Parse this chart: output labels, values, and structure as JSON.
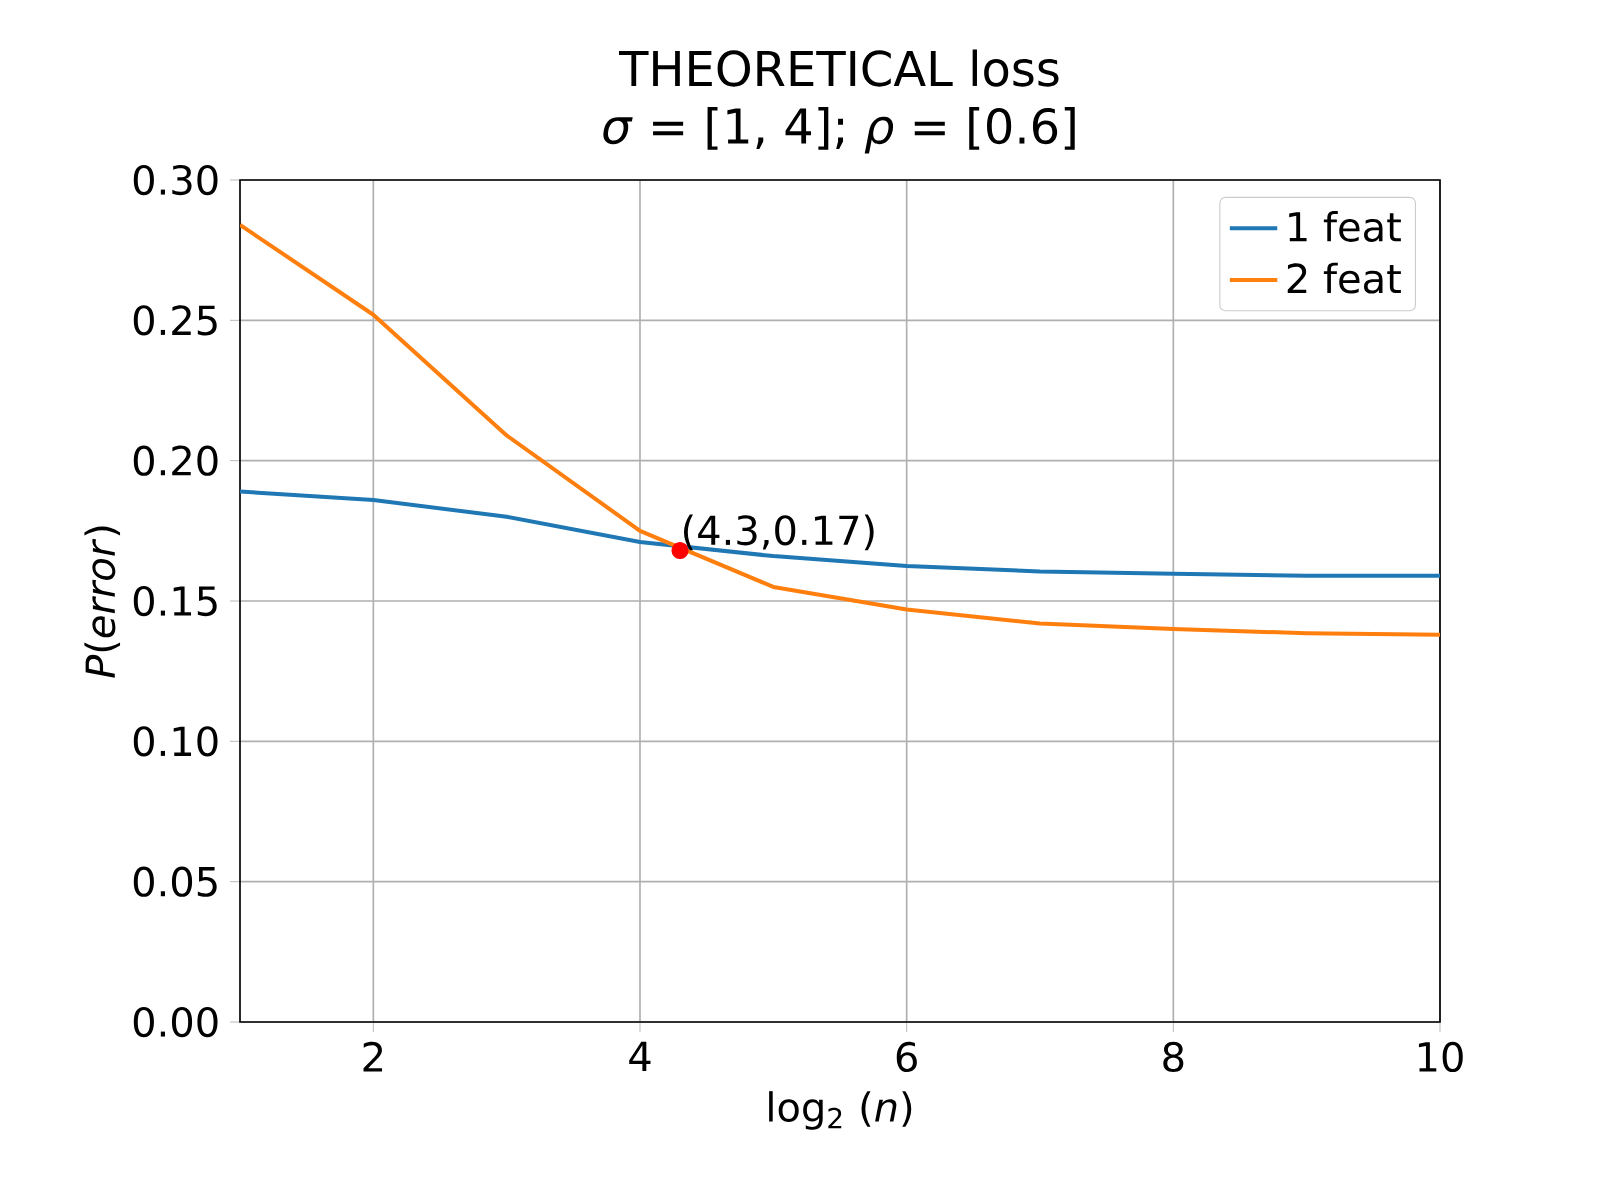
{
  "chart_data": {
    "type": "line",
    "title": "THEORETICAL loss",
    "subtitle": "*σ* = [1, 4];  *ρ* = [0.6]",
    "xlabel": "log$_{2}$ (*n*)",
    "ylabel": "*P*(*error*)",
    "x": [
      1,
      2,
      3,
      4,
      5,
      6,
      7,
      8,
      9,
      10
    ],
    "series": [
      {
        "name": "1 feat",
        "color": "#1f77b4",
        "values": [
          0.189,
          0.186,
          0.18,
          0.171,
          0.166,
          0.1625,
          0.1605,
          0.1597,
          0.159,
          0.159
        ]
      },
      {
        "name": "2 feat",
        "color": "#ff7f0e",
        "values": [
          0.284,
          0.252,
          0.209,
          0.175,
          0.155,
          0.147,
          0.142,
          0.14,
          0.1385,
          0.138
        ]
      },
      {
        "type": "scatter",
        "color": "#ff0000",
        "x": [
          4.3
        ],
        "values": [
          0.168
        ]
      }
    ],
    "annotations": [
      {
        "text": "(4.3,0.17)",
        "x": 4.3,
        "y": 0.17
      }
    ],
    "xlim": [
      1,
      10
    ],
    "ylim": [
      0,
      0.3
    ],
    "xticks": [
      2,
      4,
      6,
      8,
      10
    ],
    "yticks": [
      {
        "value": 0,
        "label": "0.00"
      },
      {
        "value": 0.05,
        "label": "0.05"
      },
      {
        "value": 0.1,
        "label": "0.10"
      },
      {
        "value": 0.15,
        "label": "0.15"
      },
      {
        "value": 0.2,
        "label": "0.20"
      },
      {
        "value": 0.25,
        "label": "0.25"
      },
      {
        "value": 0.3,
        "label": "0.30"
      }
    ],
    "grid": true,
    "legend": "top right"
  }
}
